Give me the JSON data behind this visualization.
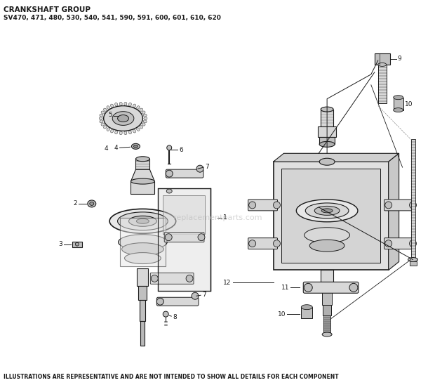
{
  "title_line1": "CRANKSHAFT GROUP",
  "title_line2": "SV470, 471, 480, 530, 540, 541, 590, 591, 600, 601, 610, 620",
  "footer": "ILLUSTRATIONS ARE REPRESENTATIVE AND ARE NOT INTENDED TO SHOW ALL DETAILS FOR EACH COMPONENT",
  "bg_color": "#ffffff",
  "line_color": "#1a1a1a",
  "gray_light": "#e0e0e0",
  "gray_mid": "#c0c0c0",
  "gray_dark": "#909090",
  "gray_fill": "#d8d8d8",
  "watermark": "replacementparts.com",
  "figsize": [
    6.2,
    5.48
  ],
  "dpi": 100
}
